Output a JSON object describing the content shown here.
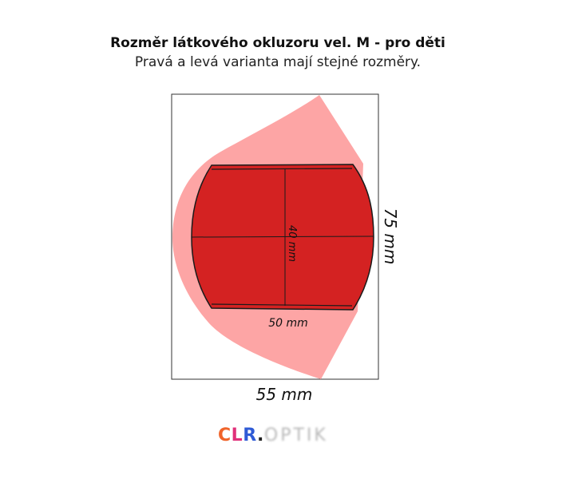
{
  "title": "Rozměr látkového okluzoru vel. M - pro děti",
  "subtitle": "Pravá a levá varianta mají stejné rozměry.",
  "dimensions": {
    "outer_width": "55 mm",
    "outer_height": "75 mm",
    "inner_width": "50 mm",
    "inner_height": "40 mm"
  },
  "logo": {
    "c": "C",
    "l": "L",
    "r": "R",
    "dot": ".",
    "suffix": "OPTIK"
  },
  "colors": {
    "outer_shape": "#fda5a5",
    "inner_shape": "#d42222",
    "frame": "#333333"
  }
}
